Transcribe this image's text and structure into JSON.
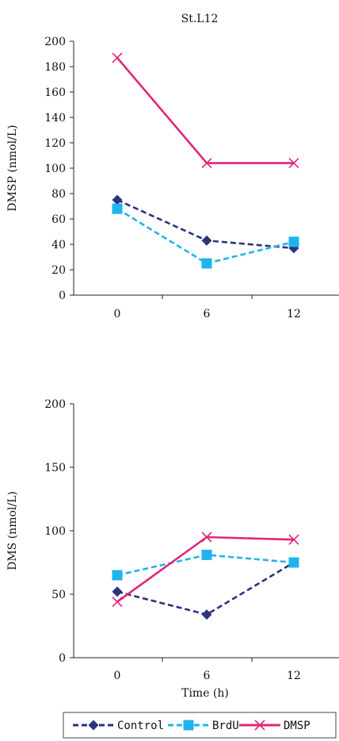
{
  "page_title": "St.L12",
  "chart_data": [
    {
      "type": "line",
      "x": [
        0,
        6,
        12
      ],
      "xticks": [
        "0",
        "6",
        "12"
      ],
      "yticks": [
        "0",
        "20",
        "40",
        "60",
        "80",
        "100",
        "120",
        "140",
        "160",
        "180",
        "200"
      ],
      "ylim": [
        0,
        200
      ],
      "ylabel": "DMSP (nmol/L)",
      "xlabel": "",
      "series": [
        {
          "name": "Control",
          "values": [
            75,
            43,
            37
          ]
        },
        {
          "name": "BrdU",
          "values": [
            68,
            25,
            42
          ]
        },
        {
          "name": "DMSP",
          "values": [
            187,
            104,
            104
          ]
        }
      ]
    },
    {
      "type": "line",
      "x": [
        0,
        6,
        12
      ],
      "xticks": [
        "0",
        "6",
        "12"
      ],
      "yticks": [
        "0",
        "50",
        "100",
        "150",
        "200"
      ],
      "ylim": [
        0,
        200
      ],
      "ylabel": "DMS (nmol/L)",
      "xlabel": "Time (h)",
      "series": [
        {
          "name": "Control",
          "values": [
            52,
            34,
            75
          ]
        },
        {
          "name": "BrdU",
          "values": [
            65,
            81,
            75
          ]
        },
        {
          "name": "DMSP",
          "values": [
            44,
            95,
            93
          ]
        }
      ]
    }
  ],
  "legend": {
    "entries": [
      {
        "label": "Control",
        "color": "#2b347f",
        "marker": "diamond",
        "line": "dashed"
      },
      {
        "label": "BrdU",
        "color": "#1fb4ec",
        "marker": "square",
        "line": "dashed"
      },
      {
        "label": "DMSP",
        "color": "#e0257b",
        "marker": "cross",
        "line": "solid"
      }
    ]
  }
}
